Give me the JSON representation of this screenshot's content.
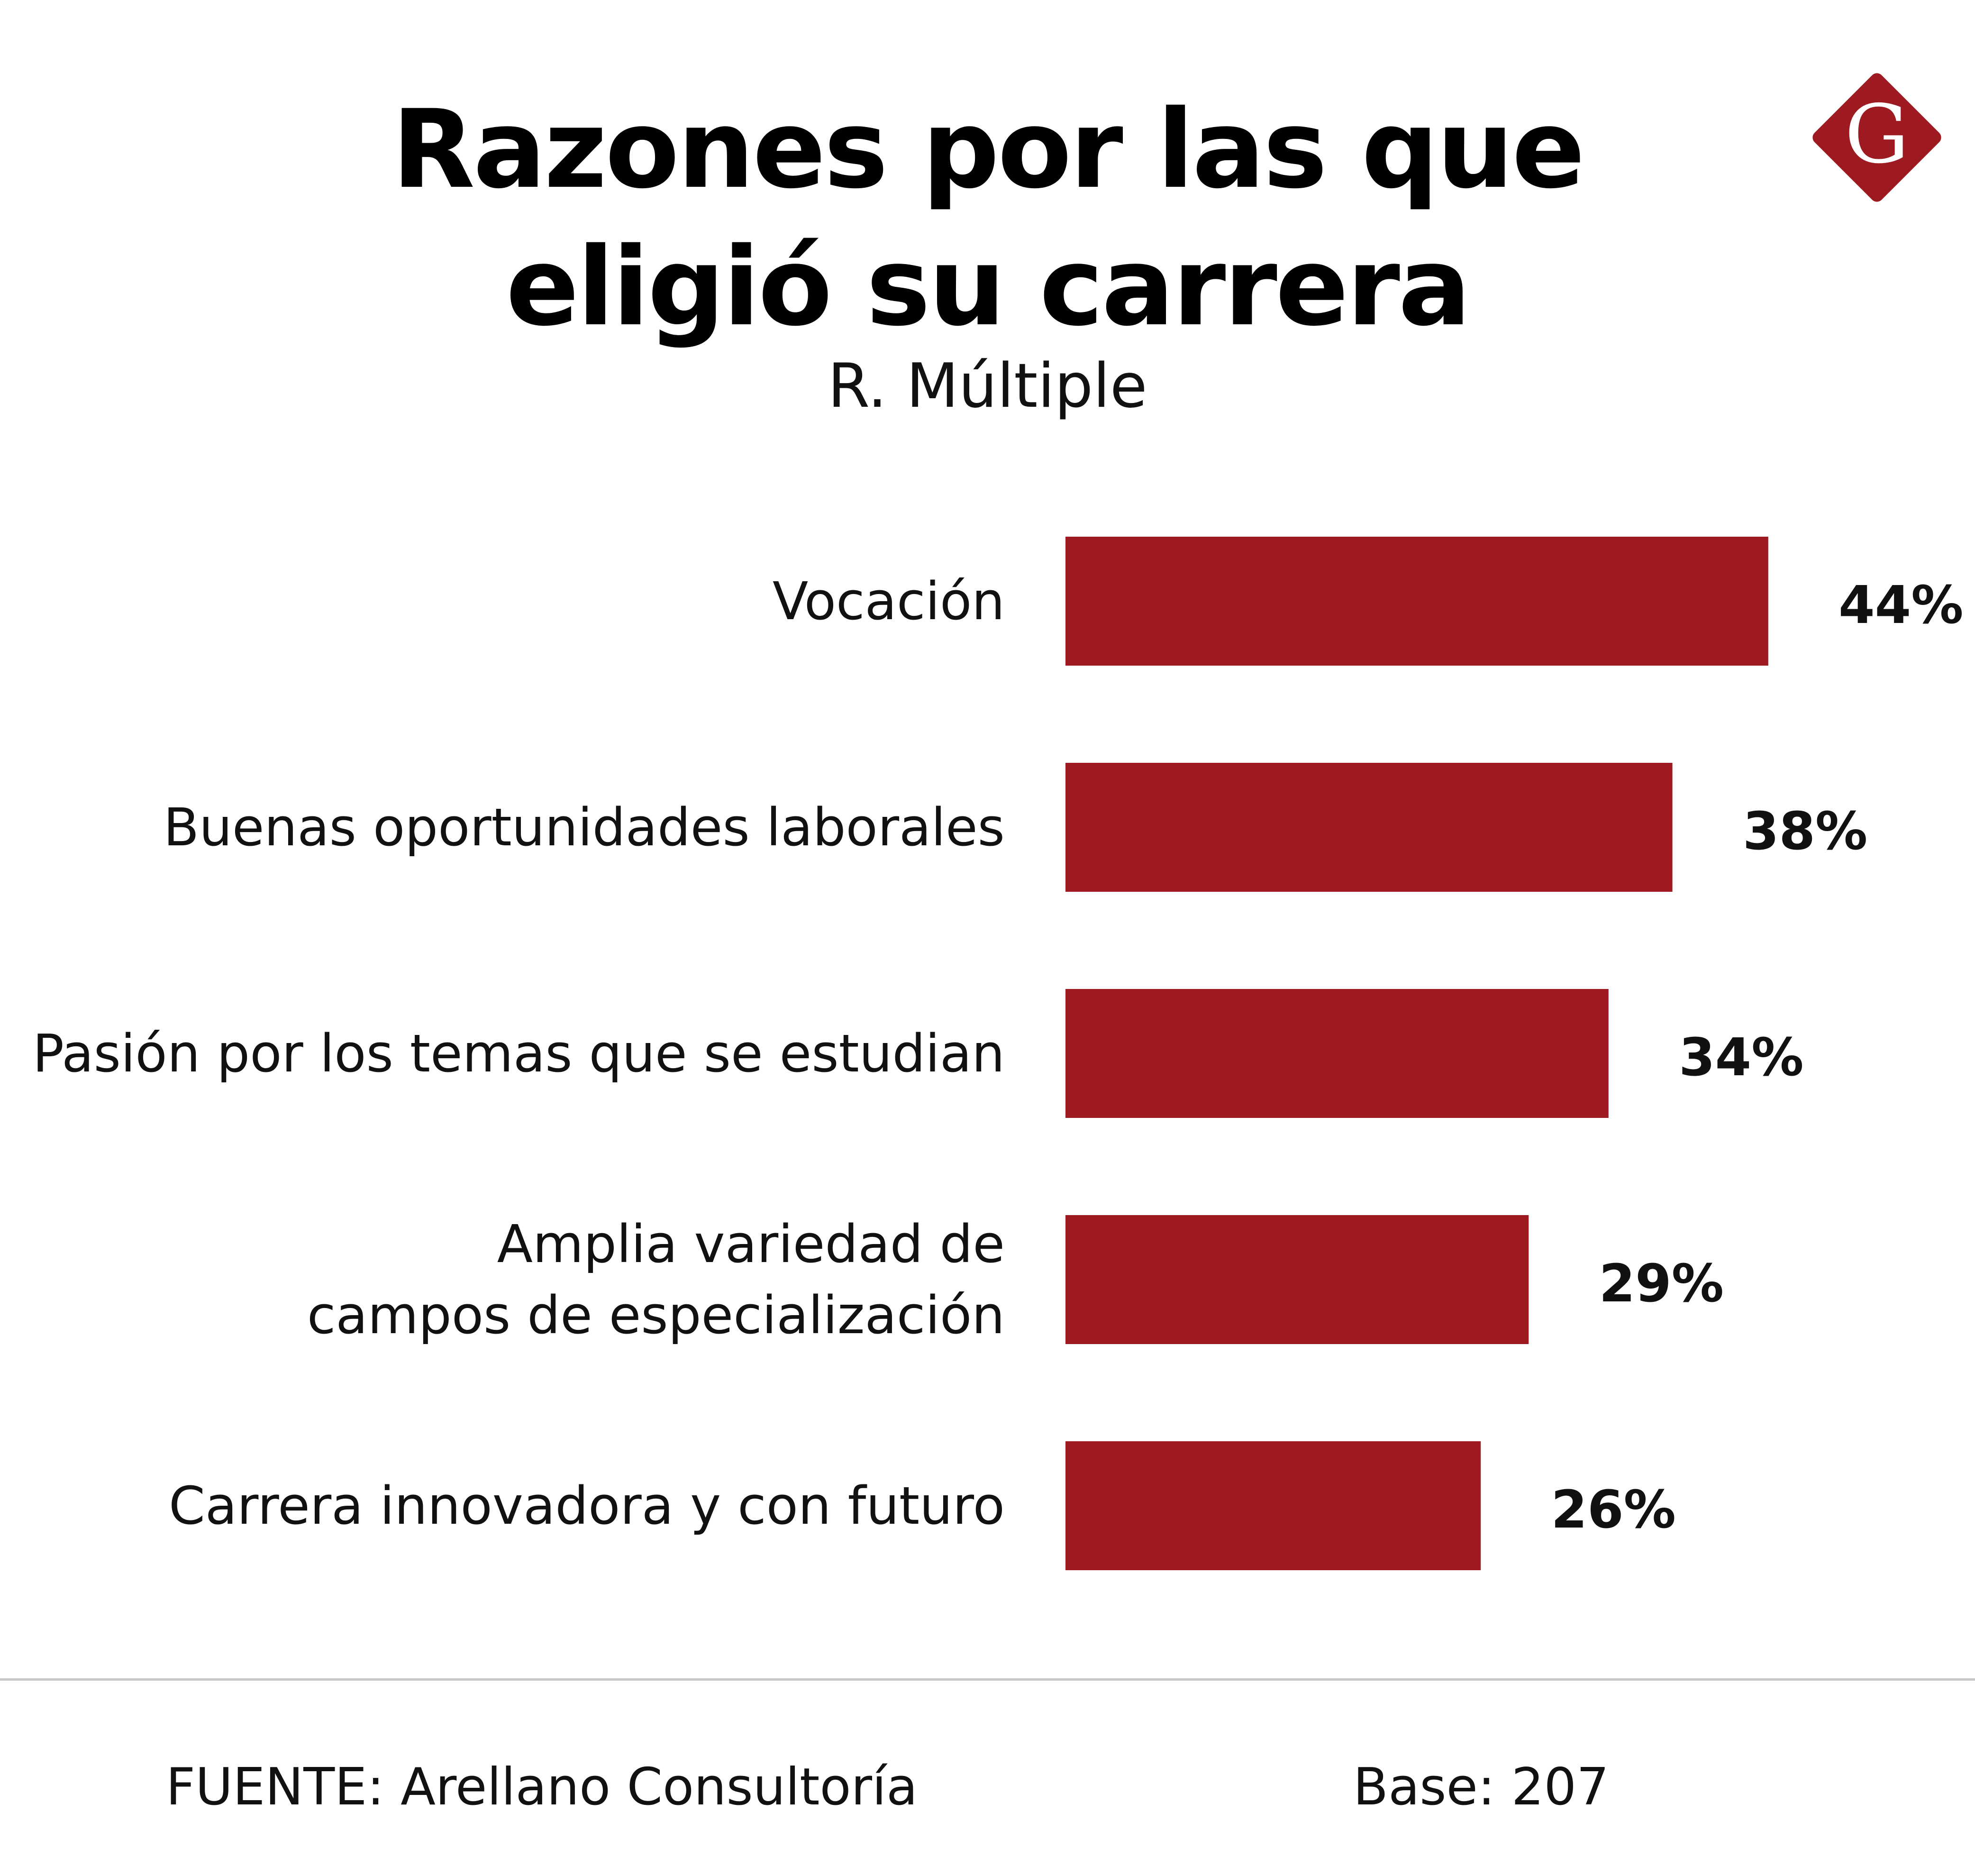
{
  "header": {
    "title_line1": "Razones por las que",
    "title_line2": "eligió su carrera",
    "subtitle": "R. Múltiple",
    "logo_letter": "G"
  },
  "colors": {
    "bar": "#9e1a21",
    "logo": "#9e1a21",
    "text": "#111111",
    "divider": "#c8c8c8"
  },
  "chart_data": {
    "type": "bar",
    "orientation": "horizontal",
    "categories": [
      [
        "Vocación"
      ],
      [
        "Buenas oportunidades laborales"
      ],
      [
        "Pasión por los temas que se estudian"
      ],
      [
        "Amplia variedad de",
        "campos de especialización"
      ],
      [
        "Carrera innovadora y con futuro"
      ]
    ],
    "values": [
      44,
      38,
      34,
      29,
      26
    ],
    "value_labels": [
      "44%",
      "38%",
      "34%",
      "29%",
      "26%"
    ],
    "unit": "%",
    "grid": false,
    "legend": "none"
  },
  "footer": {
    "source": "FUENTE: Arellano Consultoría",
    "base": "Base: 207"
  }
}
